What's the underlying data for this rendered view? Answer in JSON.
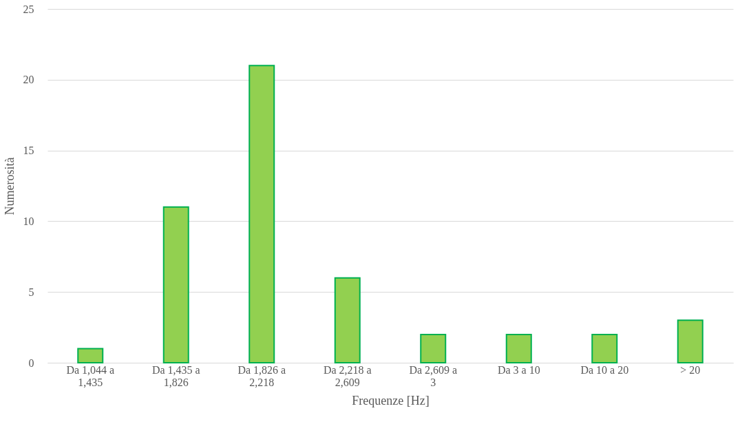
{
  "chart_data": {
    "type": "bar",
    "xlabel": "Frequenze [Hz]",
    "ylabel": "Numerosità",
    "categories": [
      "Da 1,044 a 1,435",
      "Da 1,435 a 1,826",
      "Da 1,826 a 2,218",
      "Da 2,218 a 2,609",
      "Da 2,609 a 3",
      "Da 3 a 10",
      "Da 10 a 20",
      "> 20"
    ],
    "values": [
      1,
      11,
      21,
      6,
      2,
      2,
      2,
      3
    ],
    "color": "#92d050",
    "ylim": [
      0,
      25
    ],
    "yticks": [
      0,
      5,
      10,
      15,
      20,
      25
    ],
    "grid": "y"
  }
}
